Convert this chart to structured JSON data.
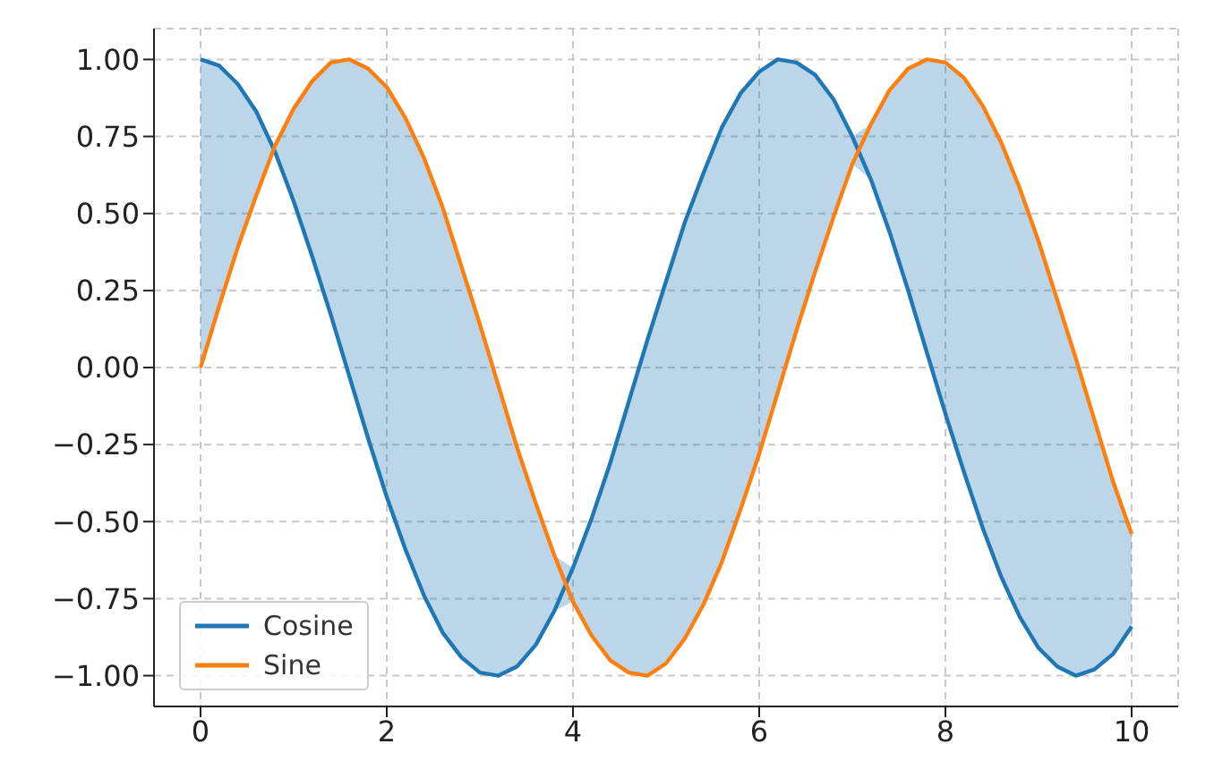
{
  "chart_data": {
    "type": "line",
    "x": [
      0,
      0.2,
      0.4,
      0.6,
      0.8,
      1.0,
      1.2,
      1.4,
      1.6,
      1.8,
      2.0,
      2.2,
      2.4,
      2.6,
      2.8,
      3.0,
      3.2,
      3.4,
      3.6,
      3.8,
      4.0,
      4.2,
      4.4,
      4.6,
      4.8,
      5.0,
      5.2,
      5.4,
      5.6,
      5.8,
      6.0,
      6.2,
      6.4,
      6.6,
      6.8,
      7.0,
      7.2,
      7.4,
      7.6,
      7.8,
      8.0,
      8.2,
      8.4,
      8.6,
      8.8,
      9.0,
      9.2,
      9.4,
      9.6,
      9.8,
      10
    ],
    "series": [
      {
        "name": "Cosine",
        "color": "#1f77b4",
        "values": [
          1,
          0.98,
          0.92,
          0.83,
          0.7,
          0.54,
          0.36,
          0.17,
          -0.03,
          -0.23,
          -0.42,
          -0.59,
          -0.74,
          -0.86,
          -0.94,
          -0.99,
          -1.0,
          -0.97,
          -0.9,
          -0.79,
          -0.65,
          -0.49,
          -0.31,
          -0.11,
          0.09,
          0.28,
          0.47,
          0.63,
          0.78,
          0.89,
          0.96,
          1.0,
          0.99,
          0.95,
          0.87,
          0.75,
          0.61,
          0.44,
          0.25,
          0.05,
          -0.15,
          -0.34,
          -0.52,
          -0.68,
          -0.81,
          -0.91,
          -0.97,
          -1.0,
          -0.98,
          -0.93,
          -0.84
        ],
        "lower": [
          0,
          0.2,
          0.39,
          0.56,
          0.7,
          0.54,
          0.36,
          0.17,
          -0.03,
          -0.23,
          -0.42,
          -0.59,
          -0.74,
          -0.86,
          -0.94,
          -0.99,
          -1.0,
          -0.97,
          -0.9,
          -0.79,
          -0.76,
          -0.87,
          -0.95,
          -0.99,
          -1.0,
          -0.96,
          -0.88,
          -0.77,
          -0.63,
          -0.46,
          -0.28,
          -0.08,
          0.12,
          0.31,
          0.49,
          0.66,
          0.61,
          0.44,
          0.25,
          0.05,
          -0.15,
          -0.34,
          -0.52,
          -0.68,
          -0.81,
          -0.91,
          -0.97,
          -1.0,
          -0.98,
          -0.93,
          -0.84
        ],
        "upper": [
          1,
          0.98,
          0.92,
          0.83,
          0.72,
          0.84,
          0.93,
          0.99,
          1.0,
          0.97,
          0.91,
          0.81,
          0.68,
          0.52,
          0.33,
          0.14,
          -0.06,
          -0.26,
          -0.44,
          -0.61,
          -0.65,
          -0.49,
          -0.31,
          -0.11,
          0.09,
          0.28,
          0.47,
          0.63,
          0.78,
          0.89,
          0.96,
          1.0,
          0.99,
          0.95,
          0.87,
          0.75,
          0.79,
          0.9,
          0.97,
          1.0,
          0.99,
          0.94,
          0.85,
          0.73,
          0.58,
          0.41,
          0.22,
          0.03,
          -0.17,
          -0.37,
          -0.54
        ]
      },
      {
        "name": "Sine",
        "color": "#ff7f0e",
        "values": [
          0,
          0.2,
          0.39,
          0.56,
          0.72,
          0.84,
          0.93,
          0.99,
          1.0,
          0.97,
          0.91,
          0.81,
          0.68,
          0.52,
          0.33,
          0.14,
          -0.06,
          -0.26,
          -0.44,
          -0.61,
          -0.76,
          -0.87,
          -0.95,
          -0.99,
          -1.0,
          -0.96,
          -0.88,
          -0.77,
          -0.63,
          -0.46,
          -0.28,
          -0.08,
          0.12,
          0.31,
          0.49,
          0.66,
          0.79,
          0.9,
          0.97,
          1.0,
          0.99,
          0.94,
          0.85,
          0.73,
          0.58,
          0.41,
          0.22,
          0.03,
          -0.17,
          -0.37,
          -0.54
        ]
      }
    ],
    "xlim": [
      -0.5,
      10.5
    ],
    "xticks": [
      0,
      2,
      4,
      6,
      8,
      10
    ],
    "ylim": [
      -1.1,
      1.1
    ],
    "yticks": [
      {
        "value": -1,
        "label": "−1.00"
      },
      {
        "value": -0.75,
        "label": "−0.75"
      },
      {
        "value": -0.5,
        "label": "−0.50"
      },
      {
        "value": -0.25,
        "label": "−0.25"
      },
      {
        "value": 0,
        "label": "0.00"
      },
      {
        "value": 0.25,
        "label": "0.25"
      },
      {
        "value": 0.5,
        "label": "0.50"
      },
      {
        "value": 0.75,
        "label": "0.75"
      },
      {
        "value": 1,
        "label": "1.00"
      }
    ],
    "grid": true,
    "legend": "bottom left",
    "line_style": "solid",
    "marker": "none"
  }
}
